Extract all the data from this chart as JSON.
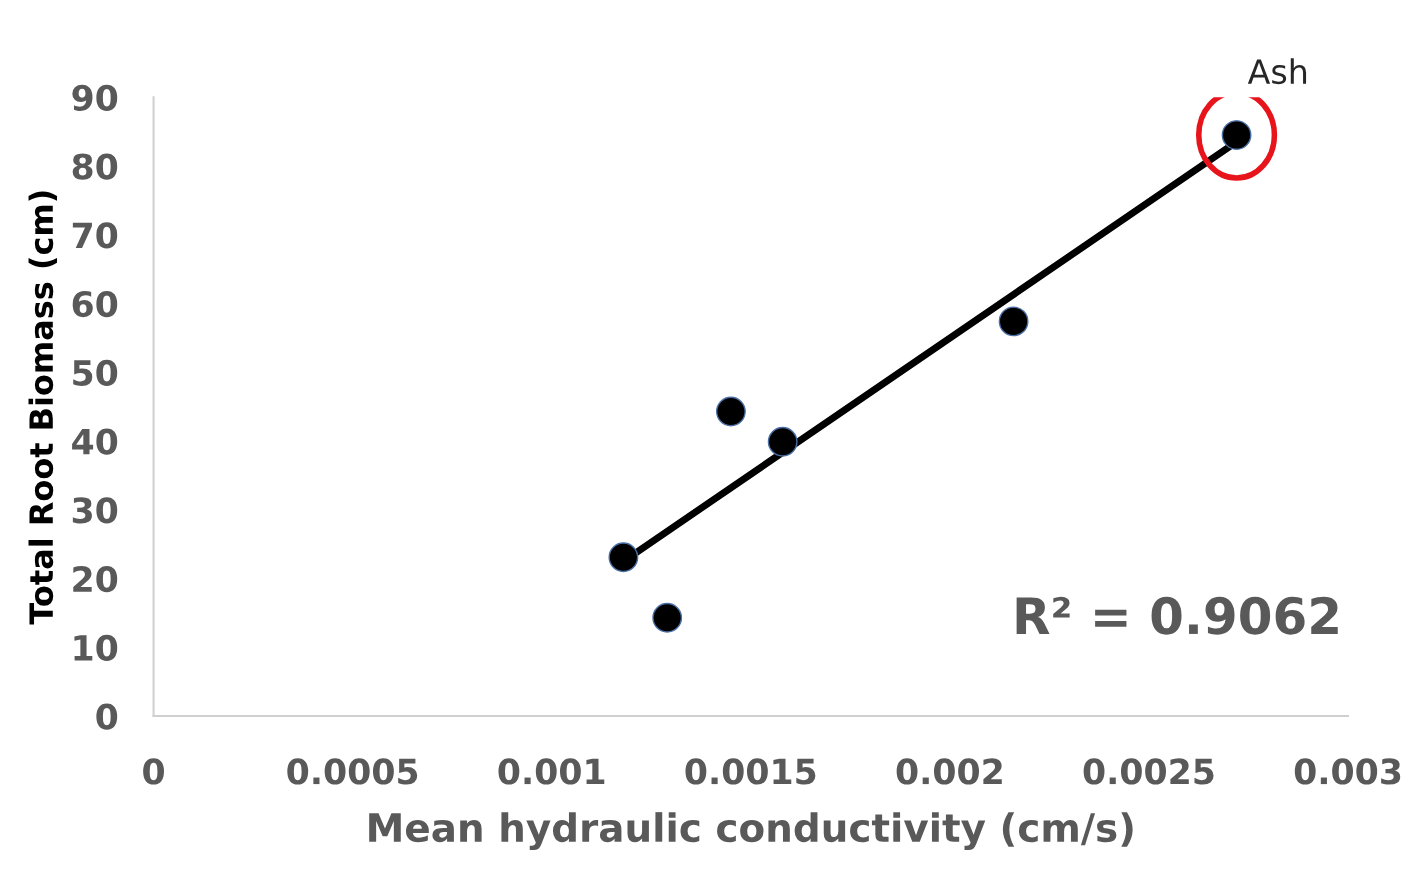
{
  "chart_data": {
    "type": "scatter",
    "xlabel": "Mean hydraulic conductivity (cm/s)",
    "ylabel": "Total Root Biomass (cm)",
    "xlim": [
      0,
      0.003
    ],
    "xticks": [
      0,
      0.0005,
      0.001,
      0.0015,
      0.002,
      0.0025,
      0.003
    ],
    "ylim": [
      0,
      90
    ],
    "yticks": [
      0,
      10,
      20,
      30,
      40,
      50,
      60,
      70,
      80,
      90
    ],
    "grid": false,
    "legend": false,
    "marker": "circle",
    "series": [
      {
        "color": "#000000",
        "x": [
          0.00118,
          0.00129,
          0.00145,
          0.00158,
          0.00216,
          0.00272
        ],
        "values": [
          23.1,
          14.3,
          44.3,
          39.9,
          57.4,
          84.5
        ]
      },
      {
        "type": "line",
        "marker": "none",
        "color": "#000000",
        "x": [
          0.00118,
          0.00272
        ],
        "values": [
          22.5,
          83.5
        ]
      }
    ],
    "annotations": [
      {
        "text": "Ash",
        "x": 0.00272,
        "y": 84.5
      },
      "R² = 0.9062"
    ]
  }
}
